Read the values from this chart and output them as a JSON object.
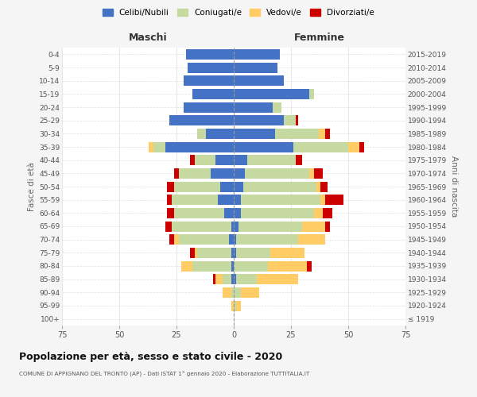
{
  "age_groups": [
    "100+",
    "95-99",
    "90-94",
    "85-89",
    "80-84",
    "75-79",
    "70-74",
    "65-69",
    "60-64",
    "55-59",
    "50-54",
    "45-49",
    "40-44",
    "35-39",
    "30-34",
    "25-29",
    "20-24",
    "15-19",
    "10-14",
    "5-9",
    "0-4"
  ],
  "birth_years": [
    "≤ 1919",
    "1920-1924",
    "1925-1929",
    "1930-1934",
    "1935-1939",
    "1940-1944",
    "1945-1949",
    "1950-1954",
    "1955-1959",
    "1960-1964",
    "1965-1969",
    "1970-1974",
    "1975-1979",
    "1980-1984",
    "1985-1989",
    "1990-1994",
    "1995-1999",
    "2000-2004",
    "2005-2009",
    "2010-2014",
    "2015-2019"
  ],
  "males": {
    "celibi": [
      0,
      0,
      0,
      1,
      1,
      1,
      2,
      1,
      4,
      7,
      6,
      10,
      8,
      30,
      12,
      28,
      22,
      18,
      22,
      20,
      21
    ],
    "coniugati": [
      0,
      0,
      1,
      4,
      17,
      15,
      22,
      26,
      22,
      20,
      20,
      14,
      9,
      5,
      4,
      0,
      0,
      0,
      0,
      0,
      0
    ],
    "vedovi": [
      0,
      1,
      4,
      3,
      5,
      1,
      2,
      0,
      0,
      0,
      0,
      0,
      0,
      2,
      0,
      0,
      0,
      0,
      0,
      0,
      0
    ],
    "divorziati": [
      0,
      0,
      0,
      1,
      0,
      2,
      2,
      3,
      3,
      2,
      3,
      2,
      2,
      0,
      0,
      0,
      0,
      0,
      0,
      0,
      0
    ]
  },
  "females": {
    "nubili": [
      0,
      0,
      0,
      1,
      0,
      1,
      1,
      2,
      3,
      3,
      4,
      5,
      6,
      26,
      18,
      22,
      17,
      33,
      22,
      19,
      20
    ],
    "coniugate": [
      0,
      1,
      3,
      9,
      15,
      15,
      27,
      28,
      32,
      35,
      32,
      28,
      21,
      24,
      19,
      5,
      4,
      2,
      0,
      0,
      0
    ],
    "vedove": [
      0,
      2,
      8,
      18,
      17,
      15,
      12,
      10,
      4,
      2,
      2,
      2,
      0,
      5,
      3,
      0,
      0,
      0,
      0,
      0,
      0
    ],
    "divorziate": [
      0,
      0,
      0,
      0,
      2,
      0,
      0,
      2,
      4,
      8,
      3,
      4,
      3,
      2,
      2,
      1,
      0,
      0,
      0,
      0,
      0
    ]
  },
  "colors": {
    "celibi": "#4472C4",
    "coniugati": "#C5D9A0",
    "vedovi": "#FFCC66",
    "divorziati": "#CC0000"
  },
  "xlim": 75,
  "title": "Popolazione per età, sesso e stato civile - 2020",
  "subtitle": "COMUNE DI APPIGNANO DEL TRONTO (AP) - Dati ISTAT 1° gennaio 2020 - Elaborazione TUTTITALIA.IT",
  "ylabel_left": "Fasce di età",
  "ylabel_right": "Anni di nascita",
  "xlabel_left": "Maschi",
  "xlabel_right": "Femmine",
  "bg_color": "#f5f5f5",
  "plot_bg": "#ffffff"
}
